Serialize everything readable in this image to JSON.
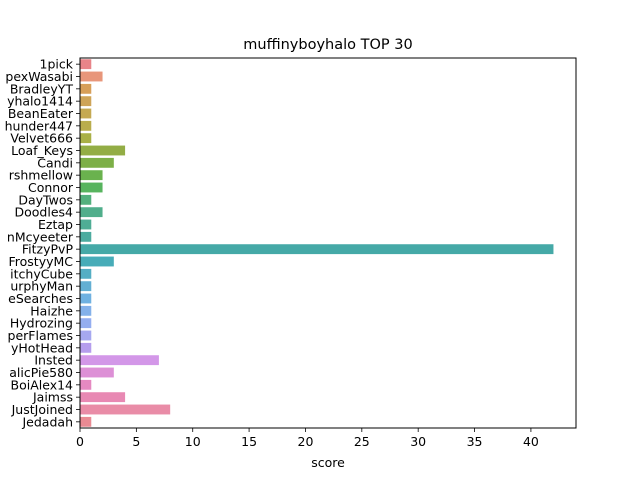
{
  "chart_data": {
    "type": "bar",
    "orientation": "horizontal",
    "title": "muffinyboyhalo TOP 30",
    "xlabel": "score",
    "ylabel": "",
    "xlim": [
      0,
      44
    ],
    "xticks": [
      0,
      5,
      10,
      15,
      20,
      25,
      30,
      35,
      40
    ],
    "grid": false,
    "legend": "none",
    "categories": [
      "1pick",
      "pexWasabi",
      "BradleyYT",
      "yhalo1414",
      "BeanEater",
      "hunder447",
      "Velvet666",
      "Loaf_Keys",
      "Candi",
      "rshmellow",
      "Connor",
      "DayTwos",
      "Doodles4",
      "Eztap",
      "nMcyeeter",
      "FitzyPvP",
      "FrostyyMC",
      "itchyCube",
      "urphyMan",
      "eSearches",
      "Haizhe",
      "Hydrozing",
      "perFlames",
      "yHotHead",
      "Insted",
      "alicPie580",
      "BoiAlex14",
      "Jaimss",
      "JustJoined",
      "Jedadah"
    ],
    "values": [
      1,
      2,
      1,
      1,
      1,
      1,
      1,
      4,
      3,
      2,
      2,
      1,
      2,
      1,
      1,
      42,
      3,
      1,
      1,
      1,
      1,
      1,
      1,
      1,
      7,
      3,
      1,
      4,
      8,
      1
    ],
    "colors": [
      "#e88489",
      "#e8967a",
      "#d79f59",
      "#cea458",
      "#c5a952",
      "#b9ad4c",
      "#a9b046",
      "#93ad45",
      "#7daf47",
      "#6ab24e",
      "#57b45e",
      "#53b07d",
      "#50ae8b",
      "#4fad95",
      "#4cab9f",
      "#45a9a7",
      "#47acb8",
      "#54aec4",
      "#63afd3",
      "#6fb1e1",
      "#84b1ea",
      "#94aef0",
      "#a6a8f0",
      "#b59ded",
      "#d397e8",
      "#dd90d6",
      "#e589c1",
      "#e889b3",
      "#e98ca7",
      "#e98a93"
    ]
  }
}
